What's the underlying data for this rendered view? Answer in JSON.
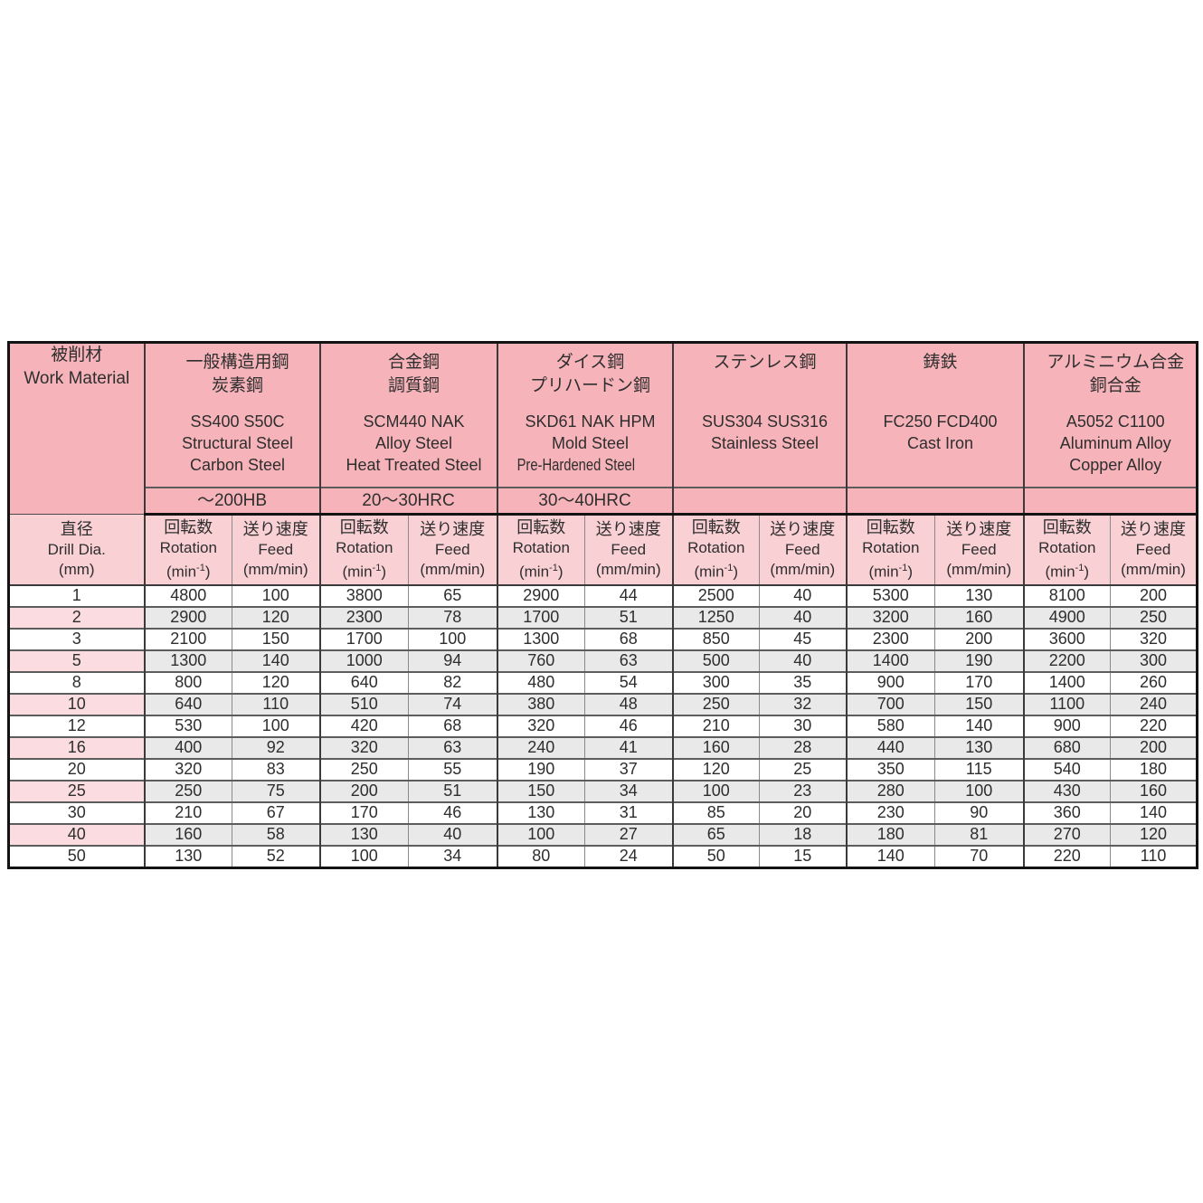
{
  "colors": {
    "header_pink": "#f6b4ba",
    "subheader_pink": "#f9d0d4",
    "stripe_pink": "#fbdce0",
    "stripe_gray": "#e9e9e9",
    "outer_border": "#131313",
    "group_border": "#3a3a3a",
    "thin_border": "#8a8a8a",
    "text": "#2e2e2e"
  },
  "table": {
    "work_material": {
      "jp": "被削材",
      "en": "Work Material"
    },
    "materials": [
      {
        "jp1": "一般構造用鋼",
        "jp2": "炭素鋼",
        "codes": "SS400 S50C",
        "en1": "Structural Steel",
        "en2": "Carbon Steel",
        "hardness": "～200HB"
      },
      {
        "jp1": "合金鋼",
        "jp2": "調質鋼",
        "codes": "SCM440 NAK",
        "en1": "Alloy Steel",
        "en2": "Heat Treated Steel",
        "hardness": "20～30HRC"
      },
      {
        "jp1": "ダイス鋼",
        "jp2": "プリハードン鋼",
        "codes": "SKD61 NAK HPM",
        "en1": "Mold Steel",
        "en2": "Pre-Hardened Steel",
        "hardness": "30～40HRC"
      },
      {
        "jp1": "ステンレス鋼",
        "jp2": "",
        "codes": "SUS304 SUS316",
        "en1": "Stainless Steel",
        "en2": "",
        "hardness": ""
      },
      {
        "jp1": "鋳鉄",
        "jp2": "",
        "codes": "FC250  FCD400",
        "en1": "Cast Iron",
        "en2": "",
        "hardness": ""
      },
      {
        "jp1": "アルミニウム合金",
        "jp2": "銅合金",
        "codes": "A5052 C1100",
        "en1": "Aluminum Alloy",
        "en2": "Copper Alloy",
        "hardness": ""
      }
    ],
    "dia_header": {
      "jp": "直径",
      "en": "Drill Dia.",
      "unit": "(mm)"
    },
    "col_headers": {
      "rotation_jp": "回転数",
      "rotation_en": "Rotation",
      "rotation_unit_pre": "(min",
      "rotation_unit_sup": "-1",
      "rotation_unit_post": ")",
      "feed_jp": "送り速度",
      "feed_en": "Feed",
      "feed_unit": "(mm/min)"
    },
    "rows": [
      {
        "dia": "1",
        "shaded": false,
        "values": [
          "4800",
          "100",
          "3800",
          "65",
          "2900",
          "44",
          "2500",
          "40",
          "5300",
          "130",
          "8100",
          "200"
        ]
      },
      {
        "dia": "2",
        "shaded": true,
        "values": [
          "2900",
          "120",
          "2300",
          "78",
          "1700",
          "51",
          "1250",
          "40",
          "3200",
          "160",
          "4900",
          "250"
        ]
      },
      {
        "dia": "3",
        "shaded": false,
        "values": [
          "2100",
          "150",
          "1700",
          "100",
          "1300",
          "68",
          "850",
          "45",
          "2300",
          "200",
          "3600",
          "320"
        ]
      },
      {
        "dia": "5",
        "shaded": true,
        "values": [
          "1300",
          "140",
          "1000",
          "94",
          "760",
          "63",
          "500",
          "40",
          "1400",
          "190",
          "2200",
          "300"
        ]
      },
      {
        "dia": "8",
        "shaded": false,
        "values": [
          "800",
          "120",
          "640",
          "82",
          "480",
          "54",
          "300",
          "35",
          "900",
          "170",
          "1400",
          "260"
        ]
      },
      {
        "dia": "10",
        "shaded": true,
        "values": [
          "640",
          "110",
          "510",
          "74",
          "380",
          "48",
          "250",
          "32",
          "700",
          "150",
          "1100",
          "240"
        ]
      },
      {
        "dia": "12",
        "shaded": false,
        "values": [
          "530",
          "100",
          "420",
          "68",
          "320",
          "46",
          "210",
          "30",
          "580",
          "140",
          "900",
          "220"
        ]
      },
      {
        "dia": "16",
        "shaded": true,
        "values": [
          "400",
          "92",
          "320",
          "63",
          "240",
          "41",
          "160",
          "28",
          "440",
          "130",
          "680",
          "200"
        ]
      },
      {
        "dia": "20",
        "shaded": false,
        "values": [
          "320",
          "83",
          "250",
          "55",
          "190",
          "37",
          "120",
          "25",
          "350",
          "115",
          "540",
          "180"
        ]
      },
      {
        "dia": "25",
        "shaded": true,
        "values": [
          "250",
          "75",
          "200",
          "51",
          "150",
          "34",
          "100",
          "23",
          "280",
          "100",
          "430",
          "160"
        ]
      },
      {
        "dia": "30",
        "shaded": false,
        "values": [
          "210",
          "67",
          "170",
          "46",
          "130",
          "31",
          "85",
          "20",
          "230",
          "90",
          "360",
          "140"
        ]
      },
      {
        "dia": "40",
        "shaded": true,
        "values": [
          "160",
          "58",
          "130",
          "40",
          "100",
          "27",
          "65",
          "18",
          "180",
          "81",
          "270",
          "120"
        ]
      },
      {
        "dia": "50",
        "shaded": false,
        "values": [
          "130",
          "52",
          "100",
          "34",
          "80",
          "24",
          "50",
          "15",
          "140",
          "70",
          "220",
          "110"
        ]
      }
    ]
  }
}
